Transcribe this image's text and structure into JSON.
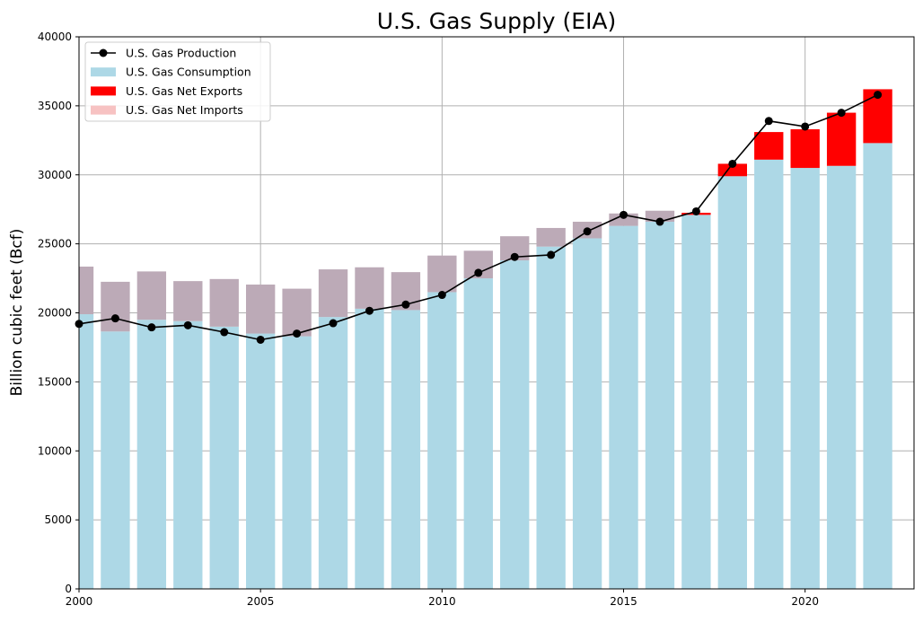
{
  "chart_data": {
    "type": "bar",
    "title": "U.S. Gas Supply (EIA)",
    "xlabel": "",
    "ylabel": "Billion cubic feet (Bcf)",
    "xlim": [
      2000,
      2023
    ],
    "ylim": [
      0,
      40000
    ],
    "x_ticks": [
      2000,
      2005,
      2010,
      2015,
      2020
    ],
    "y_ticks": [
      0,
      5000,
      10000,
      15000,
      20000,
      25000,
      30000,
      35000,
      40000
    ],
    "grid": true,
    "legend_position": "top-left",
    "colors": {
      "consumption": "#add8e6",
      "net_exports": "#ff0000",
      "net_imports": "#f7c2c2",
      "imports_over_consumption": "#bcaab7",
      "production": "#000000",
      "grid": "#b0b0b0"
    },
    "legend": [
      {
        "label": "U.S. Gas Production",
        "kind": "line",
        "color": "#000000"
      },
      {
        "label": "U.S. Gas Consumption",
        "kind": "patch",
        "color": "#add8e6"
      },
      {
        "label": "U.S. Gas Net Exports",
        "kind": "patch",
        "color": "#ff0000"
      },
      {
        "label": "U.S. Gas Net Imports",
        "kind": "patch",
        "color": "#f7c2c2"
      }
    ],
    "x": [
      2000,
      2001,
      2002,
      2003,
      2004,
      2005,
      2006,
      2007,
      2008,
      2009,
      2010,
      2011,
      2012,
      2013,
      2014,
      2015,
      2016,
      2017,
      2018,
      2019,
      2020,
      2021,
      2022
    ],
    "series": [
      {
        "name": "U.S. Gas Production",
        "type": "line",
        "values": [
          19200,
          19600,
          18950,
          19100,
          18600,
          18050,
          18500,
          19250,
          20150,
          20600,
          21300,
          22900,
          24050,
          24200,
          25900,
          27100,
          26600,
          27350,
          30800,
          33900,
          33500,
          34500,
          35800
        ]
      },
      {
        "name": "U.S. Gas Consumption",
        "type": "bar",
        "values": [
          19900,
          18650,
          19500,
          19400,
          19000,
          18500,
          18300,
          19700,
          20300,
          20200,
          21500,
          22500,
          23800,
          24800,
          25400,
          26300,
          26600,
          27100,
          29900,
          31100,
          30500,
          30650,
          32300
        ]
      },
      {
        "name": "U.S. Gas Net Exports",
        "type": "bar",
        "values": [
          0,
          0,
          0,
          0,
          0,
          0,
          0,
          0,
          0,
          0,
          0,
          0,
          0,
          0,
          0,
          0,
          0,
          150,
          900,
          2000,
          2800,
          3850,
          3900
        ]
      },
      {
        "name": "U.S. Gas Net Imports",
        "type": "bar",
        "values": [
          3450,
          3600,
          3500,
          2900,
          3450,
          3550,
          3450,
          3450,
          3000,
          2750,
          2650,
          2000,
          1750,
          1350,
          1200,
          900,
          800,
          0,
          0,
          0,
          0,
          0,
          0
        ]
      }
    ]
  }
}
